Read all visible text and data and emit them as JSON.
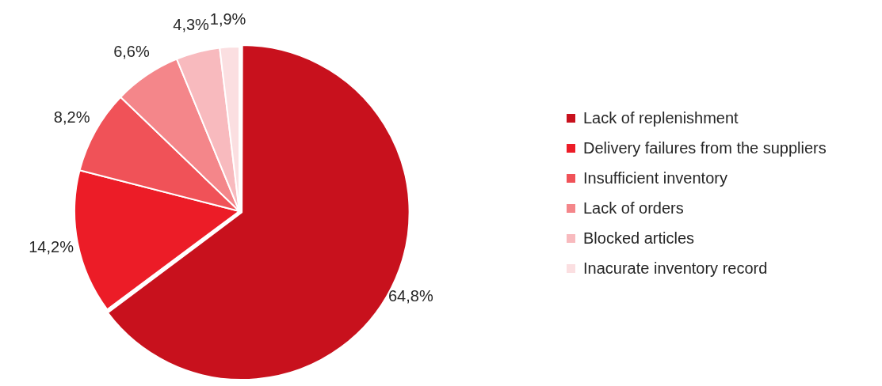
{
  "chart_data": {
    "type": "pie",
    "categories": [
      "Lack of replenishment",
      "Delivery failures from the suppliers",
      "Insufficient inventory",
      "Lack of orders",
      "Blocked articles",
      "Inacurate inventory record"
    ],
    "values": [
      64.8,
      14.2,
      8.2,
      6.6,
      4.3,
      1.9
    ],
    "value_labels": [
      "64,8%",
      "14,2%",
      "8,2%",
      "6,6%",
      "4,3%",
      "1,9%"
    ],
    "colors": [
      "#c8111d",
      "#ec1c27",
      "#f05258",
      "#f4868a",
      "#f8babe",
      "#fbdfe1"
    ],
    "legend": "right"
  }
}
